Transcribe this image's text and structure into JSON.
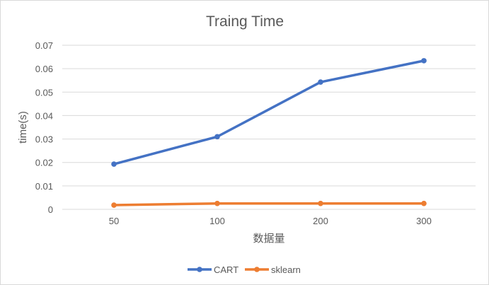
{
  "chart_data": {
    "type": "line",
    "title": "Traing Time",
    "xlabel": "数据量",
    "ylabel": "time(s)",
    "categories": [
      "50",
      "100",
      "200",
      "300"
    ],
    "ylim": [
      0,
      0.07
    ],
    "yticks": [
      "0",
      "0.01",
      "0.02",
      "0.03",
      "0.04",
      "0.05",
      "0.06",
      "0.07"
    ],
    "grid": true,
    "legend_position": "bottom",
    "series": [
      {
        "name": "CART",
        "color": "#4472c4",
        "values": [
          0.0193,
          0.031,
          0.0543,
          0.0634
        ]
      },
      {
        "name": "sklearn",
        "color": "#ed7d31",
        "values": [
          0.0018,
          0.0025,
          0.0025,
          0.0025
        ]
      }
    ]
  }
}
